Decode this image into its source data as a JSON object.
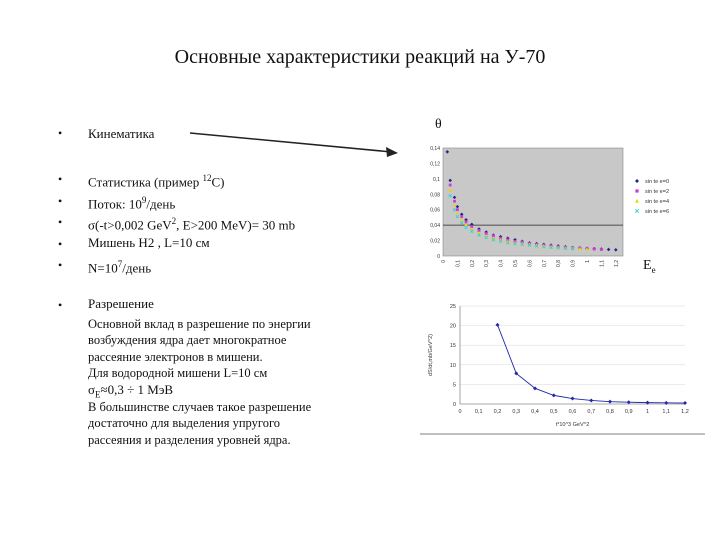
{
  "slide": {
    "title": "Основные характеристики реакций на У-70",
    "bullets": {
      "kinematics": "Кинематика",
      "stats_a": "Статистика (пример ",
      "stats_sup": "12",
      "stats_b": "C)",
      "flux_a": "Поток: 10",
      "flux_sup": "9",
      "flux_b": "/день",
      "sigma_a": "σ(-t>0,002 GeV",
      "sigma_sup": "2",
      "sigma_b": ", E>200 MeV)= 30 mb",
      "target": "Мишень H2 , L=10 см",
      "n_a": "N=10",
      "n_sup": "7",
      "n_b": "/день",
      "resolution": "Разрешение",
      "resolution_body": "Основной вклад в разрешение по энергии\nвозбуждения ядра дает многократное\nрассеяние электронов в мишени.\nДля водородной мишени L=10 см",
      "sigma_e_a": "σ",
      "sigma_e_sub": "E",
      "sigma_e_b": "≈0,3 ÷ 1 МэВ",
      "conclusion": "В большинстве случаев такое разрешение\nдостаточно для выделения упругого\nрассеяния и разделения уровней ядра."
    },
    "theta_label": "θ",
    "ee_label": "E",
    "ee_sub": "e",
    "bullet_char": "•"
  },
  "chart_data": [
    {
      "type": "scatter",
      "x": [
        0,
        0.1,
        0.2,
        0.3,
        0.4,
        0.5,
        0.6,
        0.7,
        0.8,
        0.9,
        1,
        1.1,
        1.2
      ],
      "xticks": [
        "0",
        "0,1",
        "0,2",
        "0,3",
        "0,4",
        "0,5",
        "0,6",
        "0,7",
        "0,8",
        "0,9",
        "1",
        "1,1",
        "1,2"
      ],
      "yticks": [
        "0",
        "0,02",
        "0,04",
        "0,06",
        "0,08",
        "0,1",
        "0,12",
        "0,14"
      ],
      "ylim": [
        0,
        0.14
      ],
      "xlim": [
        0,
        1.25
      ],
      "series": [
        {
          "name": "sin te e=0",
          "color": "#1f2a8c",
          "marker": "diamond",
          "x": [
            0.03,
            0.05,
            0.08,
            0.1,
            0.13,
            0.16,
            0.2,
            0.25,
            0.3,
            0.35,
            0.4,
            0.45,
            0.5,
            0.55,
            0.6,
            0.65,
            0.7,
            0.75,
            0.8,
            0.85,
            0.9,
            0.95,
            1.0,
            1.05,
            1.1,
            1.15,
            1.2
          ],
          "y": [
            0.135,
            0.098,
            0.076,
            0.064,
            0.054,
            0.047,
            0.041,
            0.035,
            0.031,
            0.027,
            0.025,
            0.023,
            0.021,
            0.019,
            0.017,
            0.016,
            0.015,
            0.014,
            0.013,
            0.012,
            0.011,
            0.0105,
            0.01,
            0.0095,
            0.009,
            0.0085,
            0.008
          ]
        },
        {
          "name": "sin te e=2",
          "color": "#d23ad2",
          "marker": "square",
          "x": [
            0.05,
            0.08,
            0.1,
            0.13,
            0.16,
            0.2,
            0.25,
            0.3,
            0.35,
            0.4,
            0.45,
            0.5,
            0.55,
            0.6,
            0.65,
            0.7,
            0.75,
            0.8,
            0.85,
            0.9,
            0.95,
            1.0,
            1.05,
            1.1
          ],
          "y": [
            0.092,
            0.071,
            0.06,
            0.051,
            0.044,
            0.038,
            0.033,
            0.029,
            0.026,
            0.023,
            0.021,
            0.019,
            0.018,
            0.016,
            0.015,
            0.014,
            0.013,
            0.012,
            0.011,
            0.0105,
            0.01,
            0.0095,
            0.009,
            0.0085
          ]
        },
        {
          "name": "sin te e=4",
          "color": "#e8d400",
          "marker": "triangle",
          "x": [
            0.05,
            0.08,
            0.1,
            0.13,
            0.16,
            0.2,
            0.25,
            0.3,
            0.35,
            0.4,
            0.45,
            0.5,
            0.55,
            0.6,
            0.65,
            0.7,
            0.75,
            0.8,
            0.85,
            0.9,
            0.95,
            1.0
          ],
          "y": [
            0.085,
            0.066,
            0.056,
            0.047,
            0.041,
            0.035,
            0.03,
            0.026,
            0.023,
            0.021,
            0.019,
            0.017,
            0.016,
            0.015,
            0.014,
            0.013,
            0.012,
            0.011,
            0.0105,
            0.01,
            0.0095,
            0.009
          ]
        },
        {
          "name": "sin te e=6",
          "color": "#2fd3d3",
          "marker": "x",
          "x": [
            0.05,
            0.08,
            0.1,
            0.13,
            0.16,
            0.2,
            0.25,
            0.3,
            0.35,
            0.4,
            0.45,
            0.5,
            0.55,
            0.6,
            0.65,
            0.7,
            0.75,
            0.8,
            0.85,
            0.9
          ],
          "y": [
            0.078,
            0.06,
            0.051,
            0.043,
            0.037,
            0.032,
            0.027,
            0.024,
            0.021,
            0.019,
            0.017,
            0.016,
            0.015,
            0.014,
            0.013,
            0.012,
            0.011,
            0.0105,
            0.01,
            0.0095
          ]
        }
      ]
    },
    {
      "type": "line",
      "ylabel": "dS/dt,mb/GeV^2)",
      "xlabel": "t*10^3 GeV^2",
      "xticks": [
        "0",
        "0,1",
        "0,2",
        "0,3",
        "0,4",
        "0,5",
        "0,6",
        "0,7",
        "0,8",
        "0,9",
        "1",
        "1,1",
        "1,2"
      ],
      "yticks": [
        "0",
        "5",
        "10",
        "15",
        "20",
        "25"
      ],
      "xlim": [
        0,
        1.2
      ],
      "ylim": [
        0,
        25
      ],
      "series": [
        {
          "color": "#1f2aa8",
          "x": [
            0.2,
            0.3,
            0.4,
            0.5,
            0.6,
            0.7,
            0.8,
            0.9,
            1.0,
            1.1,
            1.2
          ],
          "y": [
            20.2,
            7.8,
            4.0,
            2.2,
            1.4,
            0.9,
            0.6,
            0.45,
            0.35,
            0.3,
            0.25
          ]
        }
      ]
    }
  ]
}
